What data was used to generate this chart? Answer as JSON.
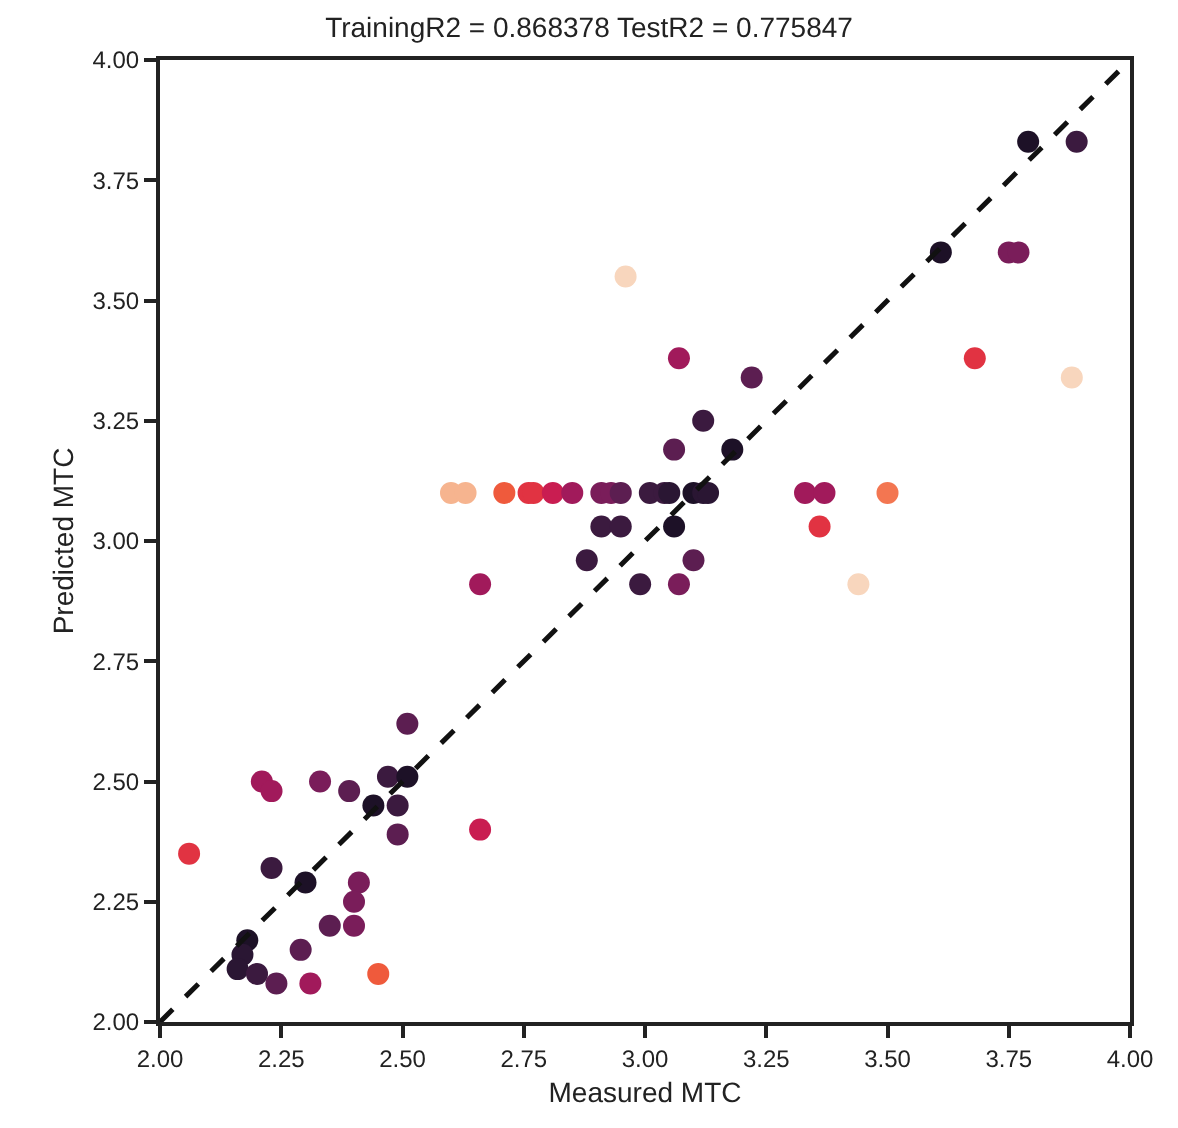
{
  "chart_data": {
    "type": "scatter",
    "title": "TrainingR2 = 0.868378 TestR2 = 0.775847",
    "xlabel": "Measured MTC",
    "ylabel": "Predicted MTC",
    "xlim": [
      2,
      4
    ],
    "ylim": [
      2,
      4
    ],
    "xticks": [
      {
        "value": 2,
        "label": "2.00"
      },
      {
        "value": 2.25,
        "label": "2.25"
      },
      {
        "value": 2.5,
        "label": "2.50"
      },
      {
        "value": 2.75,
        "label": "2.75"
      },
      {
        "value": 3,
        "label": "3.00"
      },
      {
        "value": 3.25,
        "label": "3.25"
      },
      {
        "value": 3.5,
        "label": "3.50"
      },
      {
        "value": 3.75,
        "label": "3.75"
      },
      {
        "value": 4,
        "label": "4.00"
      }
    ],
    "yticks": [
      {
        "value": 2,
        "label": "2.00"
      },
      {
        "value": 2.25,
        "label": "2.25"
      },
      {
        "value": 2.5,
        "label": "2.50"
      },
      {
        "value": 2.75,
        "label": "2.75"
      },
      {
        "value": 3,
        "label": "3.00"
      },
      {
        "value": 3.25,
        "label": "3.25"
      },
      {
        "value": 3.5,
        "label": "3.50"
      },
      {
        "value": 3.75,
        "label": "3.75"
      },
      {
        "value": 4,
        "label": "4.00"
      }
    ],
    "grid": false,
    "marker": "circle",
    "series": [
      {
        "x": [
          2.06,
          2.21,
          2.23,
          2.33,
          2.39,
          2.47,
          2.51,
          2.51,
          2.44,
          2.49,
          2.49,
          2.66,
          2.23,
          2.3,
          2.41,
          2.4,
          2.35,
          2.4,
          2.18,
          2.17,
          2.16,
          2.2,
          2.29,
          2.24,
          2.31,
          2.45,
          2.6,
          2.63,
          2.71,
          2.76,
          2.77,
          2.81,
          2.85,
          2.91,
          2.93,
          2.95,
          3.01,
          3.04,
          3.05,
          3.1,
          3.12,
          3.13,
          3.33,
          3.37,
          3.5,
          3.06,
          3.18,
          2.91,
          2.95,
          3.06,
          3.36,
          2.88,
          3.1,
          2.66,
          2.99,
          3.07,
          3.44,
          3.79,
          3.89,
          3.61,
          3.75,
          3.77,
          3.68,
          3.88,
          3.22,
          3.07,
          2.96,
          3.12
        ],
        "values": [
          2.35,
          2.5,
          2.48,
          2.5,
          2.48,
          2.51,
          2.51,
          2.62,
          2.45,
          2.45,
          2.39,
          2.4,
          2.32,
          2.29,
          2.29,
          2.25,
          2.2,
          2.2,
          2.17,
          2.14,
          2.11,
          2.1,
          2.15,
          2.08,
          2.08,
          2.1,
          3.1,
          3.1,
          3.1,
          3.1,
          3.1,
          3.1,
          3.1,
          3.1,
          3.1,
          3.1,
          3.1,
          3.1,
          3.1,
          3.1,
          3.1,
          3.1,
          3.1,
          3.1,
          3.1,
          3.19,
          3.19,
          3.03,
          3.03,
          3.03,
          3.03,
          2.96,
          2.96,
          2.91,
          2.91,
          2.91,
          2.91,
          3.83,
          3.83,
          3.6,
          3.6,
          3.6,
          3.38,
          3.34,
          3.34,
          3.38,
          3.55,
          3.25
        ],
        "colors": [
          "#e13342",
          "#a11a5b",
          "#a11a5b",
          "#7a1d5a",
          "#5c1e51",
          "#3b1a3f",
          "#1d1127",
          "#5c1e51",
          "#1d1127",
          "#3b1a3f",
          "#5c1e51",
          "#c91d51",
          "#3b1a3f",
          "#1d1127",
          "#7a1d5a",
          "#7a1d5a",
          "#5c1e51",
          "#7a1d5a",
          "#1d1127",
          "#2a1633",
          "#2a1633",
          "#3b1a3f",
          "#5c1e51",
          "#5c1e51",
          "#a11a5b",
          "#ef5a3c",
          "#f6b48f",
          "#f6b48f",
          "#ef5a3c",
          "#e13342",
          "#e13342",
          "#c91d51",
          "#a11a5b",
          "#7a1d5a",
          "#7a1d5a",
          "#5c1e51",
          "#3b1a3f",
          "#3b1a3f",
          "#2a1633",
          "#1d1127",
          "#2a1633",
          "#2a1633",
          "#a11a5b",
          "#a11a5b",
          "#f37651",
          "#5c1e51",
          "#1d1127",
          "#3b1a3f",
          "#3b1a3f",
          "#1d1127",
          "#e13342",
          "#3b1a3f",
          "#5c1e51",
          "#a11a5b",
          "#3b1a3f",
          "#7a1d5a",
          "#f8d6bd",
          "#1d1127",
          "#3b1a3f",
          "#1d1127",
          "#7a1d5a",
          "#7a1d5a",
          "#e13342",
          "#f8d6bd",
          "#5c1e51",
          "#a11a5b",
          "#f8d6bd",
          "#3b1a3f"
        ]
      },
      {
        "type": "line",
        "x": [
          2,
          4
        ],
        "values": [
          2,
          4
        ],
        "color": "#111111",
        "line_style": "dashed",
        "marker": "none"
      }
    ]
  }
}
